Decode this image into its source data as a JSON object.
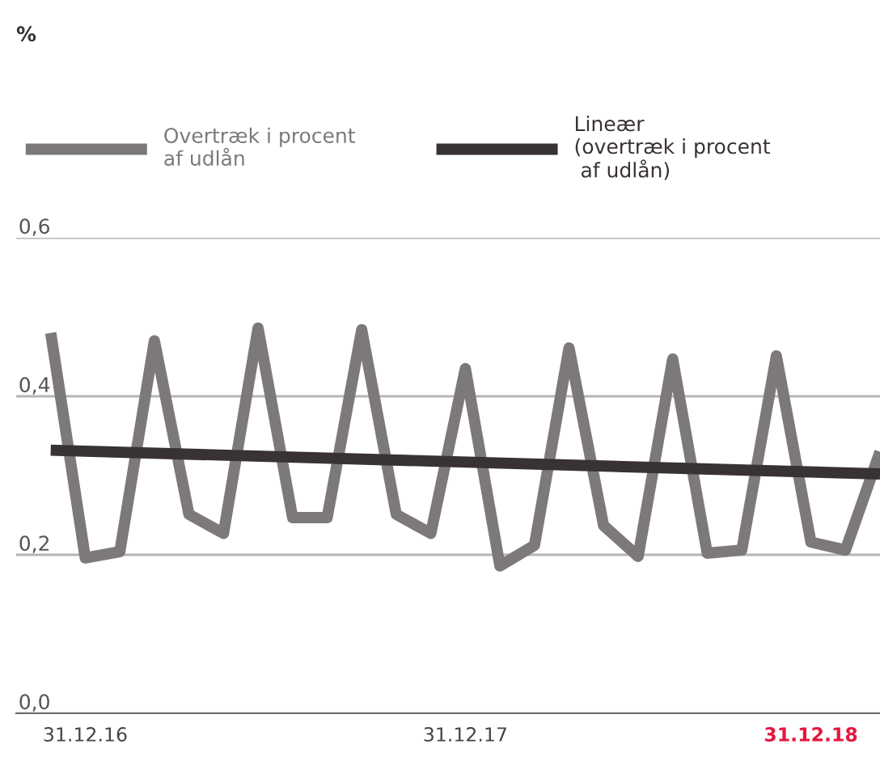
{
  "chart_data": {
    "type": "line",
    "annotations": [
      "%"
    ],
    "categories": [
      null,
      "31.12.16",
      null,
      null,
      null,
      null,
      null,
      null,
      null,
      null,
      null,
      null,
      "31.12.17",
      null,
      null,
      null,
      null,
      null,
      null,
      null,
      null,
      null,
      "31.12.18",
      null,
      null
    ],
    "series": [
      {
        "name": "Overtræk i procent\naf udlån",
        "color": "#7d7979",
        "values": [
          0.48,
          0.196,
          0.204,
          0.47,
          0.251,
          0.227,
          0.486,
          0.247,
          0.247,
          0.484,
          0.251,
          0.227,
          0.435,
          0.186,
          0.212,
          0.461,
          0.237,
          0.198,
          0.447,
          0.202,
          0.206,
          0.451,
          0.216,
          0.206,
          0.33
        ]
      },
      {
        "name": "Lineær\n(overtræk i procent\n af udlån)",
        "color": "#393232",
        "values": [
          0.332,
          null,
          null,
          null,
          null,
          null,
          null,
          null,
          null,
          null,
          null,
          null,
          null,
          null,
          null,
          null,
          null,
          null,
          null,
          null,
          null,
          null,
          null,
          null,
          0.302
        ]
      }
    ],
    "ylim": [
      0,
      0.6
    ],
    "yticks": [
      {
        "value": 0,
        "label": "0,0"
      },
      {
        "value": 0.2,
        "label": "0,2"
      },
      {
        "value": 0.4,
        "label": "0,4"
      },
      {
        "value": 0.6,
        "label": "0,6"
      }
    ],
    "grid": "y",
    "legend": "top",
    "marker": "none",
    "line_style": "solid"
  }
}
